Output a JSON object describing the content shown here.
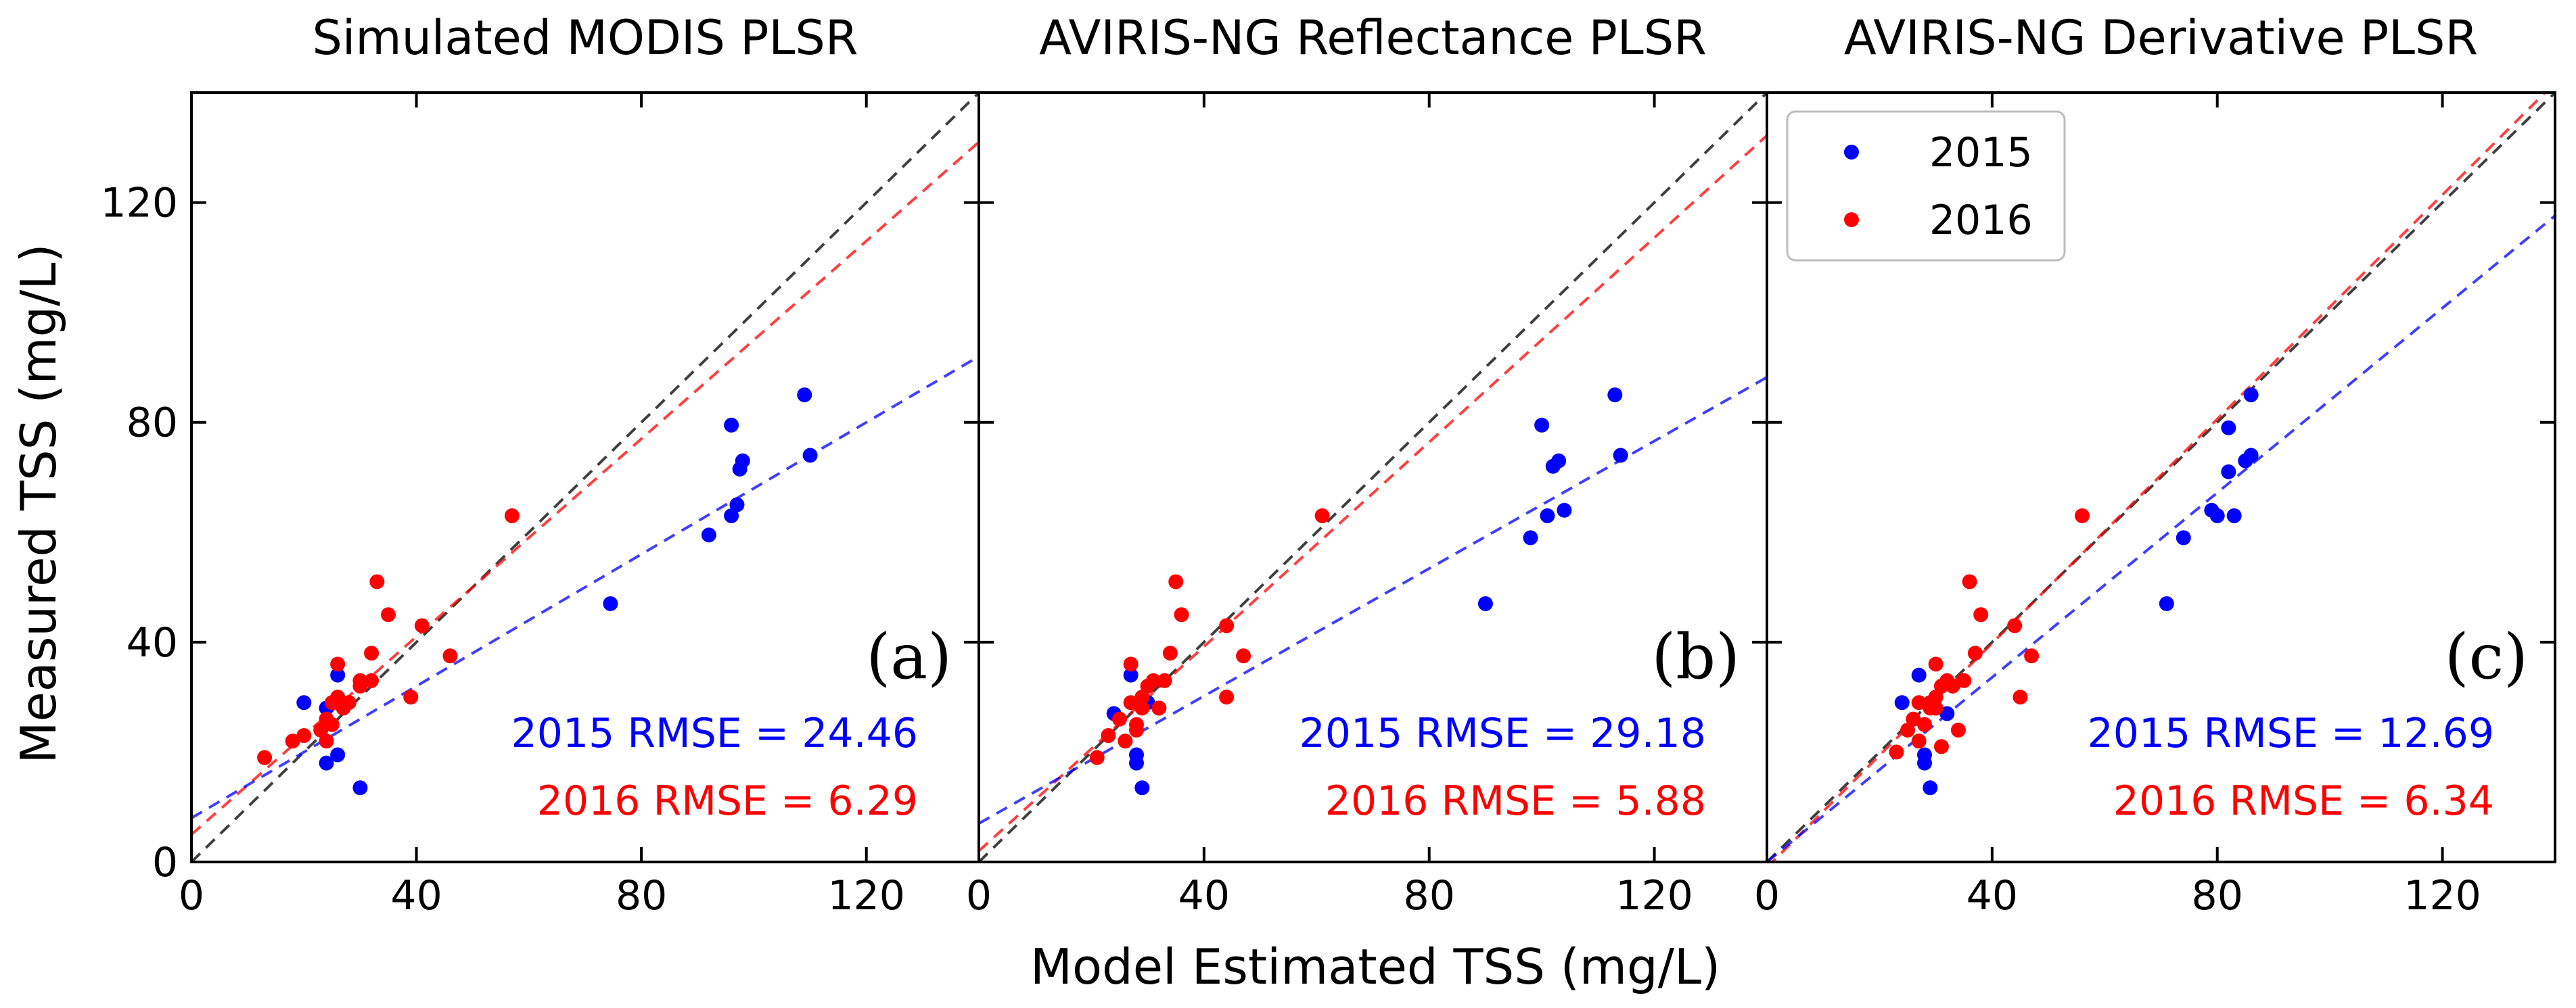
{
  "figure": {
    "xlabel": "Model Estimated TSS (mg/L)",
    "ylabel": "Measured TSS (mg/L)"
  },
  "legend": [
    {
      "label": "2015",
      "color": "#0000ff"
    },
    {
      "label": "2016",
      "color": "#ff0000"
    }
  ],
  "chart_data": [
    {
      "type": "scatter",
      "title": "Simulated MODIS PLSR",
      "panel_label": "(a)",
      "xlabel": "Model Estimated TSS (mg/L)",
      "ylabel": "Measured TSS (mg/L)",
      "xlim": [
        0,
        140
      ],
      "ylim": [
        0,
        140
      ],
      "xticks": [
        0,
        40,
        80,
        120
      ],
      "yticks": [
        0,
        40,
        80,
        120
      ],
      "series": [
        {
          "name": "2015",
          "color": "#0000ff",
          "x": [
            20,
            24,
            26,
            24,
            26,
            30,
            74.5,
            92,
            96,
            96,
            97,
            97.5,
            98,
            109,
            110
          ],
          "y": [
            29,
            28,
            34,
            18,
            19.5,
            13.5,
            47,
            59.5,
            79.5,
            63,
            65,
            71.5,
            73,
            85,
            74
          ]
        },
        {
          "name": "2016",
          "color": "#ff0000",
          "x": [
            13,
            18,
            20,
            23,
            24,
            24,
            25,
            25,
            26,
            26,
            27,
            28,
            30,
            30,
            32,
            32,
            33,
            35,
            39,
            41,
            46,
            57
          ],
          "y": [
            19,
            22,
            23,
            24,
            26,
            22,
            29,
            25,
            30,
            36,
            28,
            29,
            33,
            32,
            38,
            33,
            51,
            45,
            30,
            43,
            37.5,
            63
          ]
        }
      ],
      "fit_lines": [
        {
          "name": "1:1",
          "color": "#000000",
          "intercept": 0,
          "slope": 1
        },
        {
          "name": "2016 fit",
          "color": "#ff0000",
          "intercept": 5,
          "slope": 0.9
        },
        {
          "name": "2015 fit",
          "color": "#0000ff",
          "intercept": 8,
          "slope": 0.6
        }
      ],
      "annotations": {
        "rmse_2015": "2015 RMSE = 24.46",
        "rmse_2016": "2016 RMSE = 6.29"
      }
    },
    {
      "type": "scatter",
      "title": "AVIRIS-NG Reflectance PLSR",
      "panel_label": "(b)",
      "xlabel": "Model Estimated TSS (mg/L)",
      "ylabel": "Measured TSS (mg/L)",
      "xlim": [
        0,
        140
      ],
      "ylim": [
        0,
        140
      ],
      "xticks": [
        0,
        40,
        80,
        120
      ],
      "yticks": [
        0,
        40,
        80,
        120
      ],
      "series": [
        {
          "name": "2015",
          "color": "#0000ff",
          "x": [
            24,
            27,
            28,
            28,
            29,
            30,
            32,
            90,
            98,
            100,
            101,
            102,
            103,
            104,
            113,
            114
          ],
          "y": [
            27,
            34,
            18,
            19.5,
            13.5,
            29,
            28,
            47,
            59,
            79.5,
            63,
            72,
            73,
            64,
            85,
            74
          ]
        },
        {
          "name": "2016",
          "color": "#ff0000",
          "x": [
            21,
            23,
            25,
            26,
            27,
            27,
            28,
            28,
            29,
            29,
            30,
            31,
            32,
            33,
            34,
            35,
            36,
            44,
            44,
            47,
            61
          ],
          "y": [
            19,
            23,
            26,
            22,
            29,
            36,
            25,
            24,
            30,
            28,
            32,
            33,
            28,
            33,
            38,
            51,
            45,
            30,
            43,
            37.5,
            63
          ]
        }
      ],
      "fit_lines": [
        {
          "name": "1:1",
          "color": "#000000",
          "intercept": 0,
          "slope": 1
        },
        {
          "name": "2016 fit",
          "color": "#ff0000",
          "intercept": 2,
          "slope": 0.93
        },
        {
          "name": "2015 fit",
          "color": "#0000ff",
          "intercept": 7,
          "slope": 0.58
        }
      ],
      "annotations": {
        "rmse_2015": "2015 RMSE = 29.18",
        "rmse_2016": "2016 RMSE = 5.88"
      }
    },
    {
      "type": "scatter",
      "title": "AVIRIS-NG Derivative PLSR",
      "panel_label": "(c)",
      "xlabel": "Model Estimated TSS (mg/L)",
      "ylabel": "Measured TSS (mg/L)",
      "xlim": [
        0,
        140
      ],
      "ylim": [
        0,
        140
      ],
      "xticks": [
        0,
        40,
        80,
        120
      ],
      "yticks": [
        0,
        40,
        80,
        120
      ],
      "series": [
        {
          "name": "2015",
          "color": "#0000ff",
          "x": [
            24,
            27,
            28,
            28,
            29,
            30,
            32,
            71,
            74,
            79,
            80,
            82,
            82,
            83,
            85,
            86,
            86
          ],
          "y": [
            29,
            34,
            18,
            19.5,
            13.5,
            28,
            27,
            47,
            59,
            64,
            63,
            71,
            79,
            63,
            73,
            74,
            85
          ]
        },
        {
          "name": "2016",
          "color": "#ff0000",
          "x": [
            23,
            25,
            26,
            27,
            27,
            28,
            29,
            29,
            30,
            30,
            30,
            31,
            31,
            32,
            33,
            34,
            35,
            36,
            37,
            38,
            44,
            45,
            47,
            56
          ],
          "y": [
            20,
            24,
            26,
            22,
            29,
            25,
            28,
            29,
            36,
            28,
            30,
            32,
            21,
            33,
            32,
            24,
            33,
            51,
            38,
            45,
            43,
            30,
            37.5,
            63
          ]
        }
      ],
      "fit_lines": [
        {
          "name": "1:1",
          "color": "#000000",
          "intercept": 0,
          "slope": 1
        },
        {
          "name": "2016 fit",
          "color": "#ff0000",
          "intercept": -1,
          "slope": 1.02
        },
        {
          "name": "2015 fit",
          "color": "#0000ff",
          "intercept": 0,
          "slope": 0.84
        }
      ],
      "annotations": {
        "rmse_2015": "2015 RMSE = 12.69",
        "rmse_2016": "2016 RMSE = 6.34"
      }
    }
  ]
}
